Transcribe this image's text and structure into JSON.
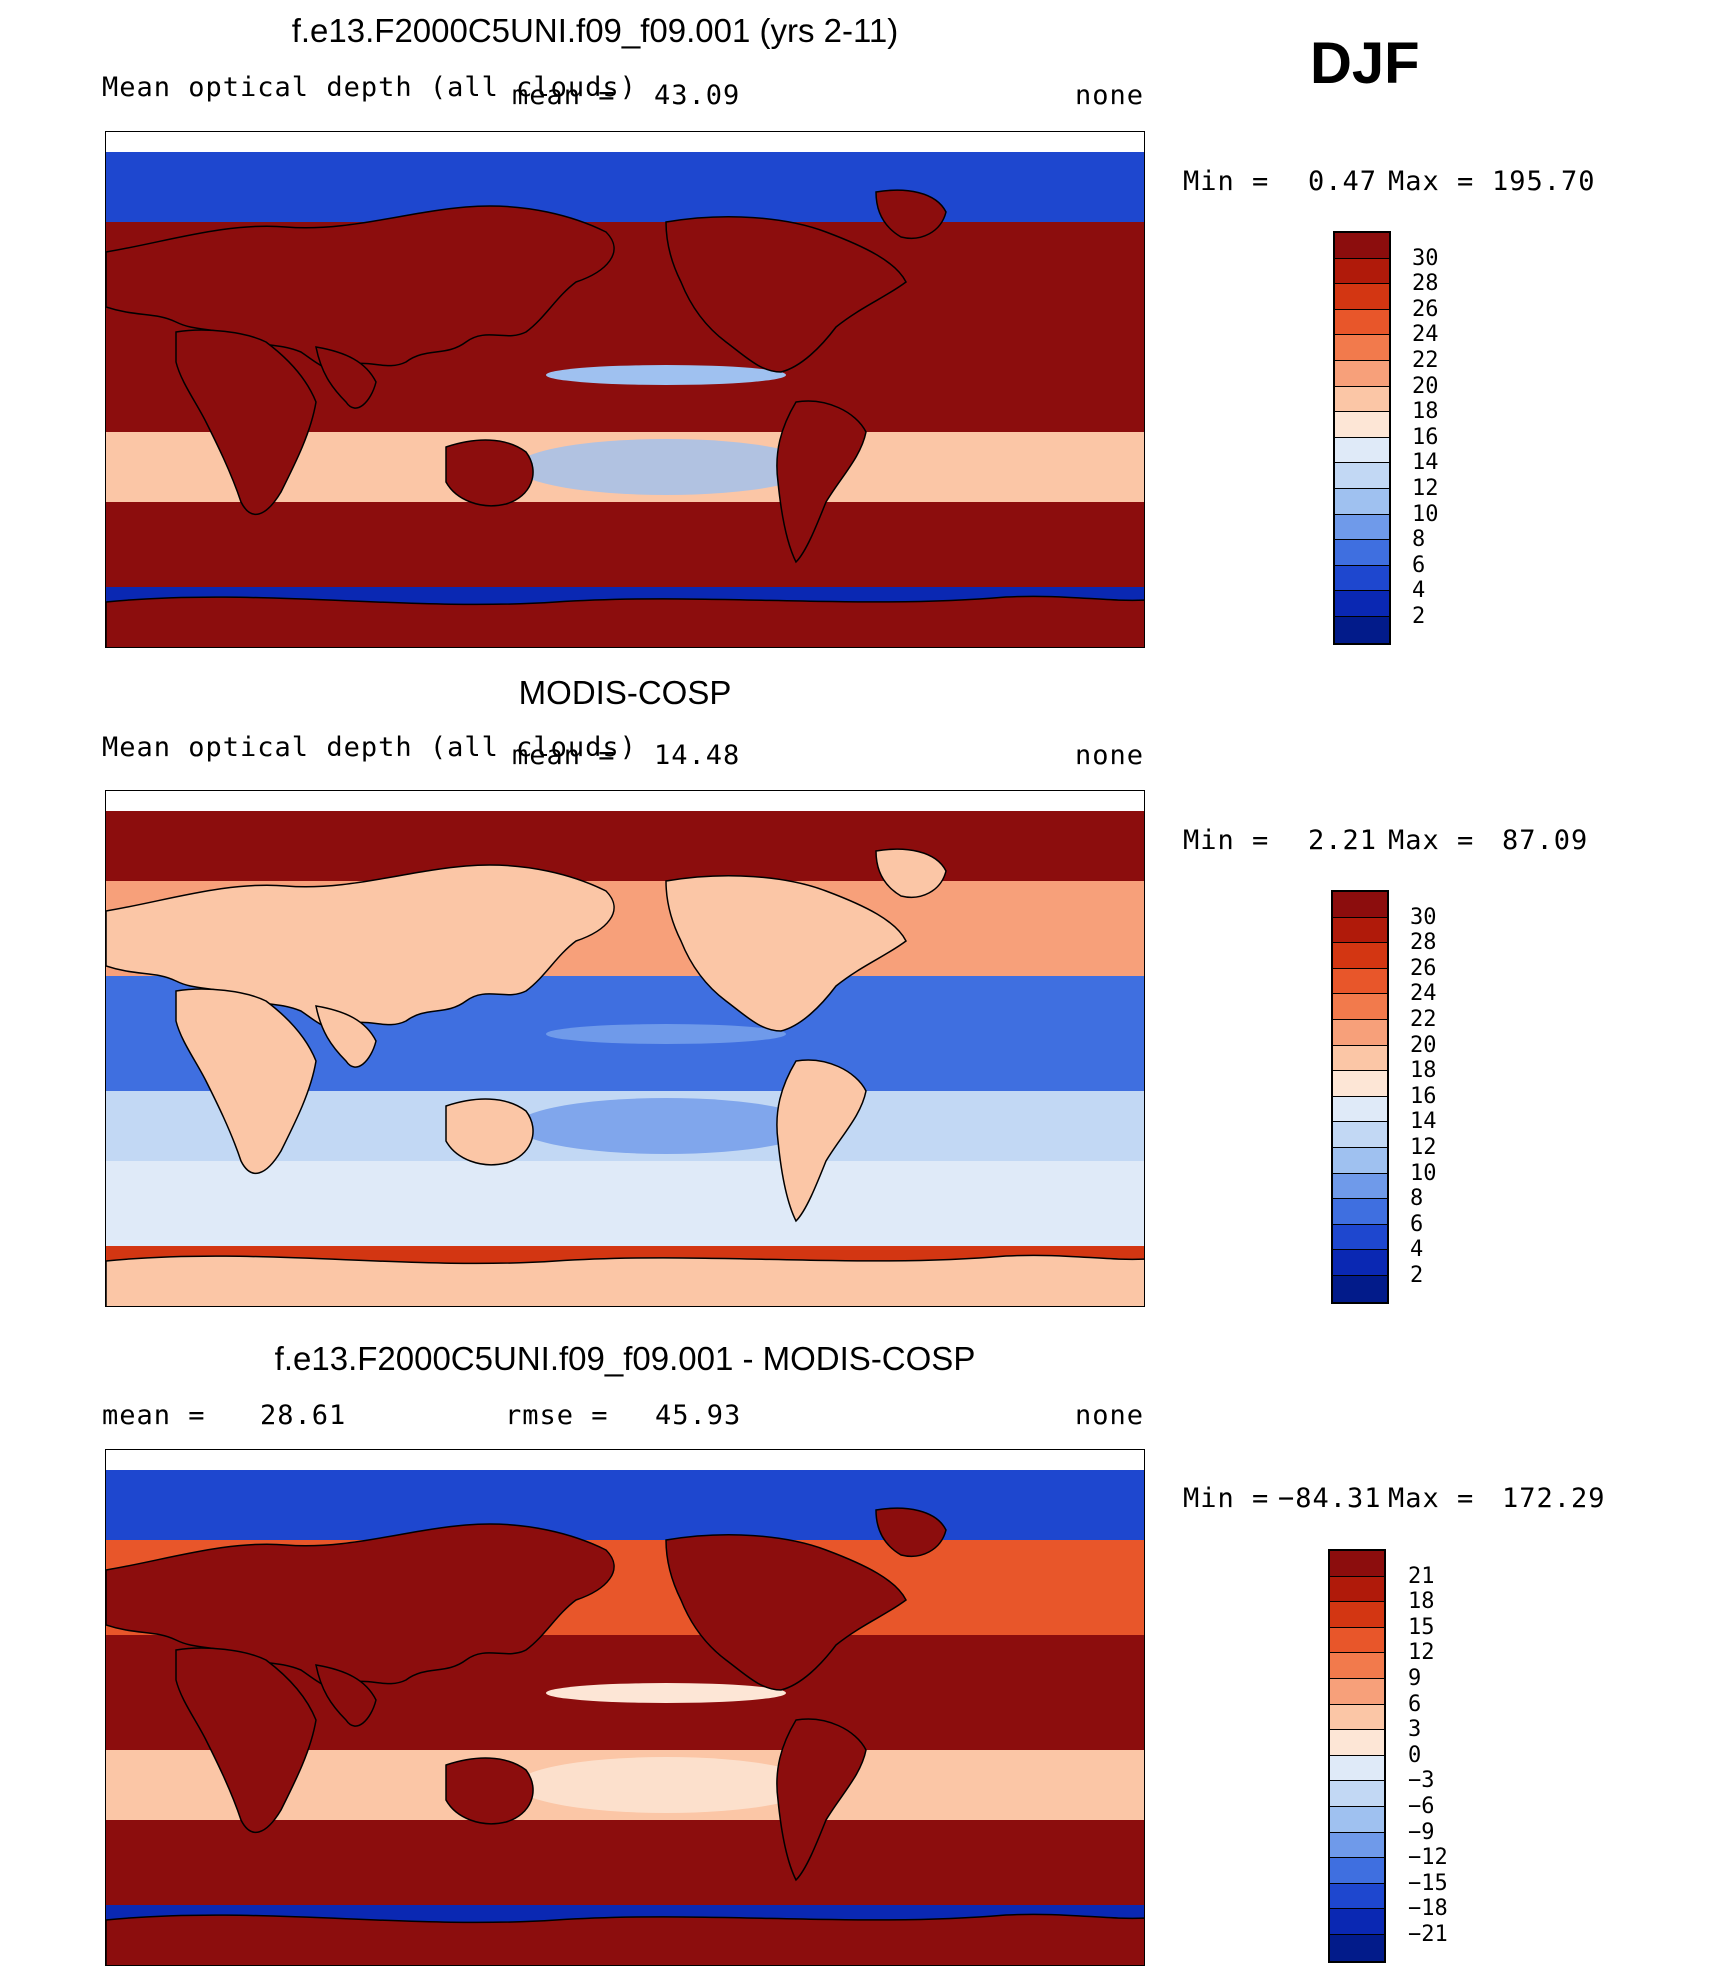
{
  "season": "DJF",
  "panels": [
    {
      "title": "f.e13.F2000C5UNI.f09_f09.001 (yrs 2-11)",
      "variable_label": "Mean optical depth (all clouds)",
      "mean_label": "mean =",
      "mean_value": "43.09",
      "units": "none",
      "min_label": "Min =",
      "min_value": "0.47",
      "max_label": "Max =",
      "max_value": "195.70",
      "colorbar_ticks": [
        "30",
        "28",
        "26",
        "24",
        "22",
        "20",
        "18",
        "16",
        "14",
        "12",
        "10",
        "8",
        "6",
        "4",
        "2"
      ]
    },
    {
      "title": "MODIS-COSP",
      "variable_label": "Mean optical depth (all clouds)",
      "mean_label": "mean =",
      "mean_value": "14.48",
      "units": "none",
      "min_label": "Min =",
      "min_value": "2.21",
      "max_label": "Max =",
      "max_value": "87.09",
      "colorbar_ticks": [
        "30",
        "28",
        "26",
        "24",
        "22",
        "20",
        "18",
        "16",
        "14",
        "12",
        "10",
        "8",
        "6",
        "4",
        "2"
      ]
    },
    {
      "title": "f.e13.F2000C5UNI.f09_f09.001 - MODIS-COSP",
      "mean_label": "mean =",
      "mean_value": "28.61",
      "rmse_label": "rmse =",
      "rmse_value": "45.93",
      "units": "none",
      "min_label": "Min =",
      "min_value": "−84.31",
      "max_label": "Max =",
      "max_value": "172.29",
      "colorbar_ticks": [
        "21",
        "18",
        "15",
        "12",
        "9",
        "6",
        "3",
        "0",
        "−3",
        "−6",
        "−9",
        "−12",
        "−15",
        "−18",
        "−21"
      ]
    }
  ],
  "colorbar_colors": [
    "#8c0d0d",
    "#b01a0a",
    "#d33612",
    "#e8562a",
    "#f27a4c",
    "#f7a07a",
    "#fbc6a6",
    "#fde6d6",
    "#dfeaf8",
    "#c2d8f4",
    "#9fc1f0",
    "#6f9aea",
    "#3f6fe0",
    "#1e47cf",
    "#0a28b3",
    "#021b8a"
  ],
  "maps": [
    {
      "name": "model-field",
      "ocean_ne": "#8c0d0d",
      "ocean_trop": "#8c0d0d",
      "band_s": "#fbc6a6",
      "south_ocean": "#8c0d0d",
      "antarctic": "#0a28b3",
      "arctic": "#1e47cf",
      "land": "#8c0d0d",
      "feature": "#9fc1f0"
    },
    {
      "name": "obs-field",
      "ocean_ne": "#f7a07a",
      "ocean_trop": "#3f6fe0",
      "band_s": "#c2d8f4",
      "south_ocean": "#dfeaf8",
      "antarctic": "#d33612",
      "arctic": "#8c0d0d",
      "land": "#fbc6a6",
      "feature": "#6f9aea"
    },
    {
      "name": "diff-field",
      "ocean_ne": "#e8562a",
      "ocean_trop": "#8c0d0d",
      "band_s": "#fbc6a6",
      "south_ocean": "#8c0d0d",
      "antarctic": "#0a28b3",
      "arctic": "#1e47cf",
      "land": "#8c0d0d",
      "feature": "#fde6d6"
    }
  ]
}
